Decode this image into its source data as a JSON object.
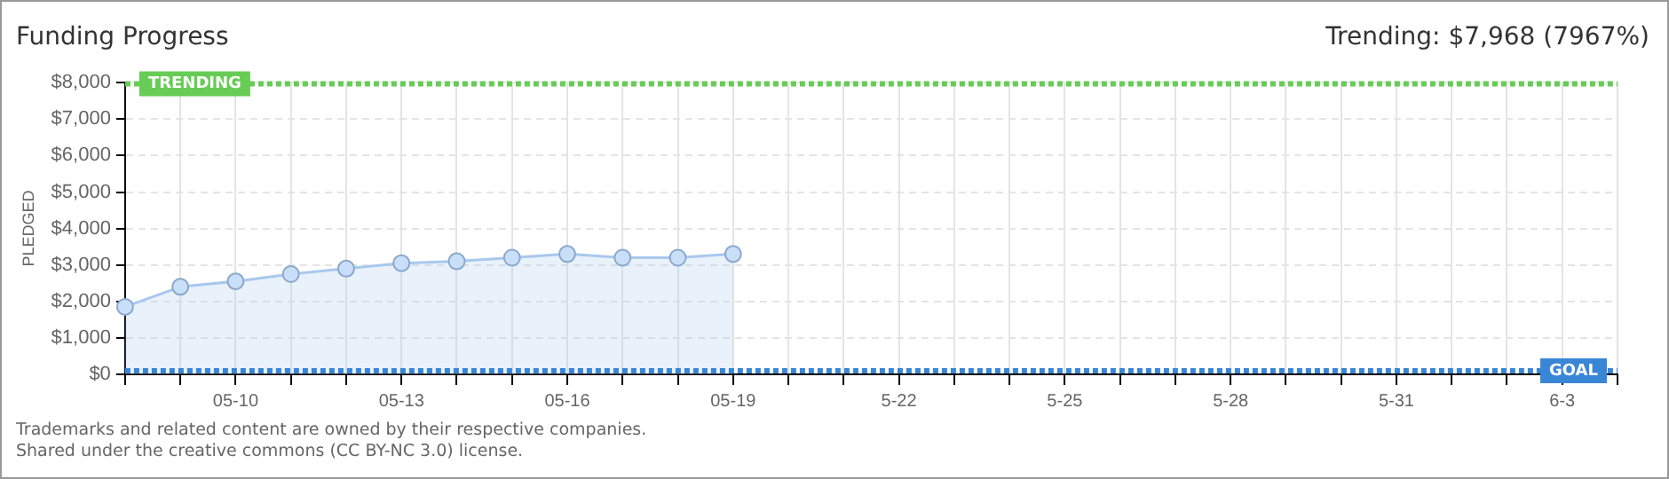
{
  "chart_data": {
    "type": "area",
    "title": "Funding Progress",
    "ylabel": "PLEDGED",
    "annotations": [
      "Trending: $7,968 (7967%)",
      "Trademarks and related content are owned by their respective companies.",
      "Shared under the creative commons (CC BY-NC 3.0) license."
    ],
    "categories": [
      null,
      null,
      "05-10",
      null,
      null,
      "05-13",
      null,
      null,
      "05-16",
      null,
      null,
      "05-19",
      null,
      null,
      "5-22",
      null,
      null,
      "5-25",
      null,
      null,
      "5-28",
      null,
      null,
      "5-31",
      null,
      null,
      "6-3",
      null
    ],
    "series": [
      {
        "color": "#a9c8ee",
        "values": [
          1850,
          2400,
          2550,
          2750,
          2900,
          3050,
          3100,
          3200,
          3300,
          3200,
          3200,
          3300,
          null,
          null,
          null,
          null,
          null,
          null,
          null,
          null,
          null,
          null,
          null,
          null,
          null,
          null,
          null,
          null
        ]
      }
    ],
    "ylim": [
      0,
      8000
    ],
    "yticks": [
      {
        "value": 0,
        "label": "$0"
      },
      {
        "value": 1000,
        "label": "$1,000"
      },
      {
        "value": 2000,
        "label": "$2,000"
      },
      {
        "value": 3000,
        "label": "$3,000"
      },
      {
        "value": 4000,
        "label": "$4,000"
      },
      {
        "value": 5000,
        "label": "$5,000"
      },
      {
        "value": 6000,
        "label": "$6,000"
      },
      {
        "value": 7000,
        "label": "$7,000"
      },
      {
        "value": 8000,
        "label": "$8,000"
      }
    ],
    "ref_lines": [
      {
        "axis": "y",
        "value": 7968,
        "label": "TRENDING",
        "color": "#66cc55",
        "line_style": "dotted"
      },
      {
        "axis": "y",
        "value": 100,
        "label": "GOAL",
        "color": "#3a86d6",
        "line_style": "dotted"
      }
    ],
    "grid": true,
    "marker": "circle",
    "legend": false
  }
}
